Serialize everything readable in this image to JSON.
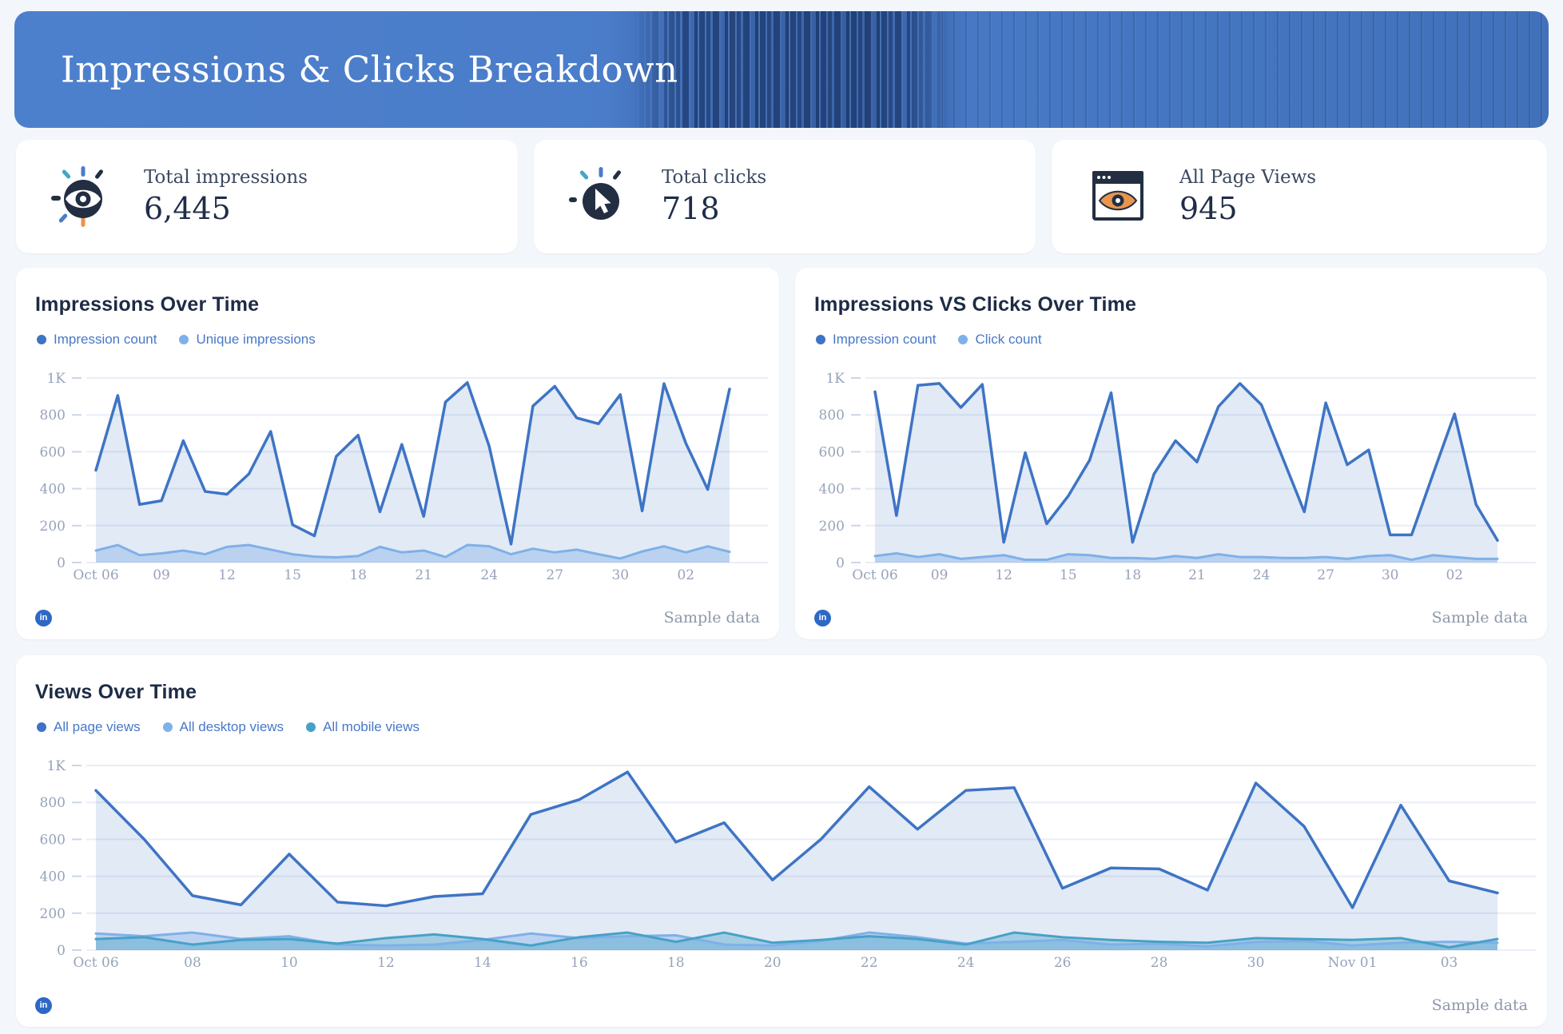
{
  "header": {
    "title": "Impressions & Clicks Breakdown",
    "bg_color": "#4a7cc9"
  },
  "theme": {
    "page_bg": "#f3f6fa",
    "card_bg": "#ffffff",
    "primary_blue": "#3e74c4",
    "light_blue": "#7fb0e8",
    "teal_blue": "#47a1c6",
    "icon_navy": "#232e42",
    "icon_orange": "#e8954d",
    "icon_teal": "#45a5c5",
    "icon_blue": "#4a7cc9"
  },
  "kpis": [
    {
      "label": "Total impressions",
      "value": "6,445",
      "icon": "eye-sparkle-icon"
    },
    {
      "label": "Total clicks",
      "value": "718",
      "icon": "cursor-click-icon"
    },
    {
      "label": "All Page Views",
      "value": "945",
      "icon": "browser-eye-icon"
    }
  ],
  "linkedin_badge_text": "in",
  "chart_data": [
    {
      "type": "area",
      "title": "Impressions Over Time",
      "footer_note": "Sample data",
      "grid": true,
      "legend_position": "top-left",
      "ylim": [
        0,
        1000
      ],
      "y_ticks": [
        {
          "value": 0,
          "label": "0"
        },
        {
          "value": 200,
          "label": "200"
        },
        {
          "value": 400,
          "label": "400"
        },
        {
          "value": 600,
          "label": "600"
        },
        {
          "value": 800,
          "label": "800"
        },
        {
          "value": 1000,
          "label": "1K"
        }
      ],
      "x": [
        "Oct 06",
        "Oct 07",
        "Oct 08",
        "Oct 09",
        "Oct 10",
        "Oct 11",
        "Oct 12",
        "Oct 13",
        "Oct 14",
        "Oct 15",
        "Oct 16",
        "Oct 17",
        "Oct 18",
        "Oct 19",
        "Oct 20",
        "Oct 21",
        "Oct 22",
        "Oct 23",
        "Oct 24",
        "Oct 25",
        "Oct 26",
        "Oct 27",
        "Oct 28",
        "Oct 29",
        "Oct 30",
        "Oct 31",
        "Nov 01",
        "Nov 02",
        "Nov 03",
        "Nov 04"
      ],
      "x_ticks": [
        {
          "index": 0,
          "label": "Oct 06"
        },
        {
          "index": 3,
          "label": "09"
        },
        {
          "index": 6,
          "label": "12"
        },
        {
          "index": 9,
          "label": "15"
        },
        {
          "index": 12,
          "label": "18"
        },
        {
          "index": 15,
          "label": "21"
        },
        {
          "index": 18,
          "label": "24"
        },
        {
          "index": 21,
          "label": "27"
        },
        {
          "index": 24,
          "label": "30"
        },
        {
          "index": 27,
          "label": "02"
        }
      ],
      "series": [
        {
          "name": "Impression count",
          "color": "#3e74c4",
          "fill": "rgba(62,116,196,0.15)",
          "width": 3.5,
          "values": [
            500,
            905,
            315,
            335,
            660,
            385,
            370,
            480,
            710,
            205,
            145,
            575,
            690,
            275,
            640,
            250,
            870,
            975,
            630,
            100,
            848,
            955,
            784,
            752,
            910,
            280,
            969,
            646,
            396,
            940
          ]
        },
        {
          "name": "Unique impressions",
          "color": "#7fb0e8",
          "fill": "rgba(127,176,232,0.40)",
          "width": 3,
          "values": [
            65,
            95,
            40,
            50,
            65,
            45,
            85,
            95,
            70,
            45,
            32,
            28,
            35,
            85,
            55,
            65,
            30,
            95,
            88,
            45,
            75,
            55,
            70,
            45,
            22,
            60,
            88,
            55,
            88,
            58
          ]
        }
      ]
    },
    {
      "type": "area",
      "title": "Impressions VS Clicks Over Time",
      "footer_note": "Sample data",
      "grid": true,
      "legend_position": "top-left",
      "ylim": [
        0,
        1000
      ],
      "y_ticks": [
        {
          "value": 0,
          "label": "0"
        },
        {
          "value": 200,
          "label": "200"
        },
        {
          "value": 400,
          "label": "400"
        },
        {
          "value": 600,
          "label": "600"
        },
        {
          "value": 800,
          "label": "800"
        },
        {
          "value": 1000,
          "label": "1K"
        }
      ],
      "x": [
        "Oct 06",
        "Oct 07",
        "Oct 08",
        "Oct 09",
        "Oct 10",
        "Oct 11",
        "Oct 12",
        "Oct 13",
        "Oct 14",
        "Oct 15",
        "Oct 16",
        "Oct 17",
        "Oct 18",
        "Oct 19",
        "Oct 20",
        "Oct 21",
        "Oct 22",
        "Oct 23",
        "Oct 24",
        "Oct 25",
        "Oct 26",
        "Oct 27",
        "Oct 28",
        "Oct 29",
        "Oct 30",
        "Oct 31",
        "Nov 01",
        "Nov 02",
        "Nov 03",
        "Nov 04"
      ],
      "x_ticks": [
        {
          "index": 0,
          "label": "Oct 06"
        },
        {
          "index": 3,
          "label": "09"
        },
        {
          "index": 6,
          "label": "12"
        },
        {
          "index": 9,
          "label": "15"
        },
        {
          "index": 12,
          "label": "18"
        },
        {
          "index": 15,
          "label": "21"
        },
        {
          "index": 18,
          "label": "24"
        },
        {
          "index": 21,
          "label": "27"
        },
        {
          "index": 24,
          "label": "30"
        },
        {
          "index": 27,
          "label": "02"
        }
      ],
      "series": [
        {
          "name": "Impression count",
          "color": "#3e74c4",
          "fill": "rgba(62,116,196,0.15)",
          "width": 3.5,
          "values": [
            925,
            255,
            960,
            970,
            840,
            965,
            110,
            595,
            210,
            360,
            555,
            920,
            110,
            480,
            660,
            545,
            845,
            970,
            855,
            565,
            275,
            865,
            530,
            610,
            150,
            150,
            480,
            805,
            315,
            120
          ]
        },
        {
          "name": "Click count",
          "color": "#7fb0e8",
          "fill": "rgba(127,176,232,0.40)",
          "width": 3,
          "values": [
            35,
            50,
            30,
            45,
            20,
            30,
            40,
            15,
            15,
            45,
            40,
            25,
            25,
            20,
            35,
            25,
            45,
            30,
            30,
            25,
            25,
            30,
            20,
            35,
            40,
            15,
            40,
            30,
            20,
            20
          ]
        }
      ]
    },
    {
      "type": "area",
      "title": "Views Over Time",
      "footer_note": "Sample data",
      "grid": true,
      "legend_position": "top-left",
      "ylim": [
        0,
        1000
      ],
      "y_ticks": [
        {
          "value": 0,
          "label": "0"
        },
        {
          "value": 200,
          "label": "200"
        },
        {
          "value": 400,
          "label": "400"
        },
        {
          "value": 600,
          "label": "600"
        },
        {
          "value": 800,
          "label": "800"
        },
        {
          "value": 1000,
          "label": "1K"
        }
      ],
      "x": [
        "Oct 06",
        "Oct 07",
        "Oct 08",
        "Oct 09",
        "Oct 10",
        "Oct 11",
        "Oct 12",
        "Oct 13",
        "Oct 14",
        "Oct 15",
        "Oct 16",
        "Oct 17",
        "Oct 18",
        "Oct 19",
        "Oct 20",
        "Oct 21",
        "Oct 22",
        "Oct 23",
        "Oct 24",
        "Oct 25",
        "Oct 26",
        "Oct 27",
        "Oct 28",
        "Oct 29",
        "Oct 30",
        "Oct 31",
        "Nov 01",
        "Nov 02",
        "Nov 03",
        "Nov 04"
      ],
      "x_ticks": [
        {
          "index": 0,
          "label": "Oct 06"
        },
        {
          "index": 2,
          "label": "08"
        },
        {
          "index": 4,
          "label": "10"
        },
        {
          "index": 6,
          "label": "12"
        },
        {
          "index": 8,
          "label": "14"
        },
        {
          "index": 10,
          "label": "16"
        },
        {
          "index": 12,
          "label": "18"
        },
        {
          "index": 14,
          "label": "20"
        },
        {
          "index": 16,
          "label": "22"
        },
        {
          "index": 18,
          "label": "24"
        },
        {
          "index": 20,
          "label": "26"
        },
        {
          "index": 22,
          "label": "28"
        },
        {
          "index": 24,
          "label": "30"
        },
        {
          "index": 26,
          "label": "Nov 01"
        },
        {
          "index": 28,
          "label": "03"
        }
      ],
      "series": [
        {
          "name": "All page views",
          "color": "#3e74c4",
          "fill": "rgba(62,116,196,0.15)",
          "width": 3.5,
          "values": [
            865,
            600,
            295,
            245,
            520,
            260,
            240,
            290,
            305,
            735,
            815,
            965,
            585,
            690,
            380,
            600,
            885,
            655,
            865,
            880,
            335,
            445,
            440,
            325,
            905,
            670,
            230,
            785,
            375,
            310
          ]
        },
        {
          "name": "All desktop views",
          "color": "#7fb0e8",
          "fill": "rgba(127,176,232,0.40)",
          "width": 3,
          "values": [
            90,
            75,
            95,
            60,
            75,
            30,
            25,
            30,
            55,
            90,
            65,
            75,
            80,
            30,
            25,
            50,
            95,
            70,
            35,
            45,
            55,
            30,
            35,
            20,
            45,
            50,
            25,
            40,
            45,
            40
          ]
        },
        {
          "name": "All mobile views",
          "color": "#47a1c6",
          "fill": "rgba(71,161,198,0.40)",
          "width": 3,
          "values": [
            60,
            70,
            30,
            55,
            60,
            35,
            65,
            85,
            60,
            25,
            70,
            95,
            45,
            95,
            40,
            55,
            75,
            60,
            30,
            95,
            70,
            55,
            45,
            40,
            65,
            60,
            55,
            65,
            15,
            60
          ]
        }
      ]
    }
  ]
}
